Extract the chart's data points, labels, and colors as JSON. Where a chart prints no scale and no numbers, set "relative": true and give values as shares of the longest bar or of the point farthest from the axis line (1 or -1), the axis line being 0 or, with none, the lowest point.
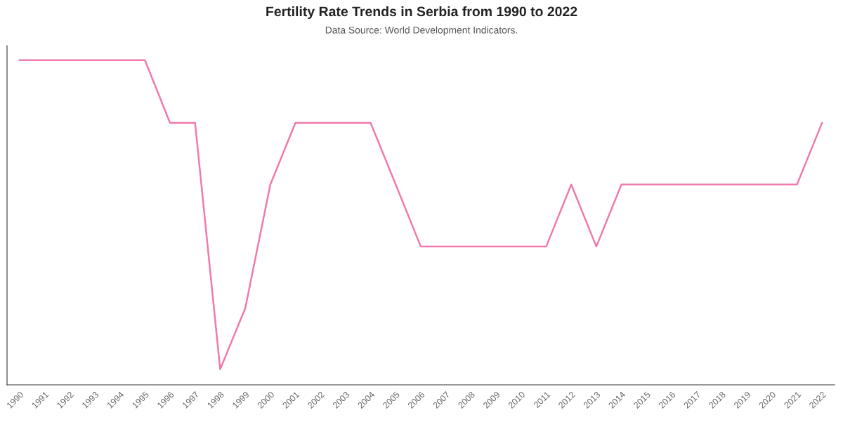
{
  "chart_data": {
    "type": "line",
    "title": "Fertility Rate Trends in Serbia from 1990 to 2022",
    "subtitle": "Data Source: World Development Indicators.",
    "relative": true,
    "categories": [
      "1990",
      "1991",
      "1992",
      "1993",
      "1994",
      "1995",
      "1996",
      "1997",
      "1998",
      "1999",
      "2000",
      "2001",
      "2002",
      "2003",
      "2004",
      "2005",
      "2006",
      "2007",
      "2008",
      "2009",
      "2010",
      "2011",
      "2012",
      "2013",
      "2014",
      "2015",
      "2016",
      "2017",
      "2018",
      "2019",
      "2020",
      "2021",
      "2022"
    ],
    "series": [
      {
        "color": "#f07aad",
        "values": [
          1,
          1,
          1,
          1,
          1,
          1,
          0.807,
          0.807,
          0.048,
          0.236,
          0.617,
          0.807,
          0.807,
          0.807,
          0.807,
          0.617,
          0.426,
          0.426,
          0.426,
          0.426,
          0.426,
          0.426,
          0.617,
          0.426,
          0.617,
          0.617,
          0.617,
          0.617,
          0.617,
          0.617,
          0.617,
          0.617,
          0.807
        ]
      }
    ],
    "grid": false,
    "legend": false
  }
}
